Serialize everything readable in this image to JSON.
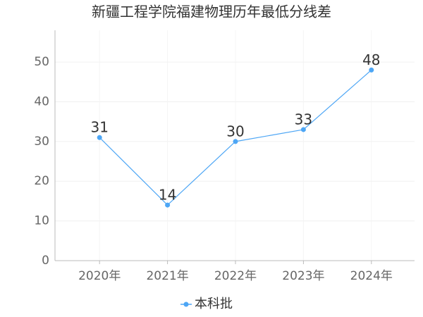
{
  "chart_data": {
    "type": "line",
    "title": "新疆工程学院福建物理历年最低分线差",
    "categories": [
      "2020年",
      "2021年",
      "2022年",
      "2023年",
      "2024年"
    ],
    "series": [
      {
        "name": "本科批",
        "color": "#4da6f5",
        "values": [
          31,
          14,
          30,
          33,
          48
        ]
      }
    ],
    "ylim": [
      0,
      58
    ],
    "yticks": [
      0,
      10,
      20,
      30,
      40,
      50
    ],
    "grid": true
  }
}
